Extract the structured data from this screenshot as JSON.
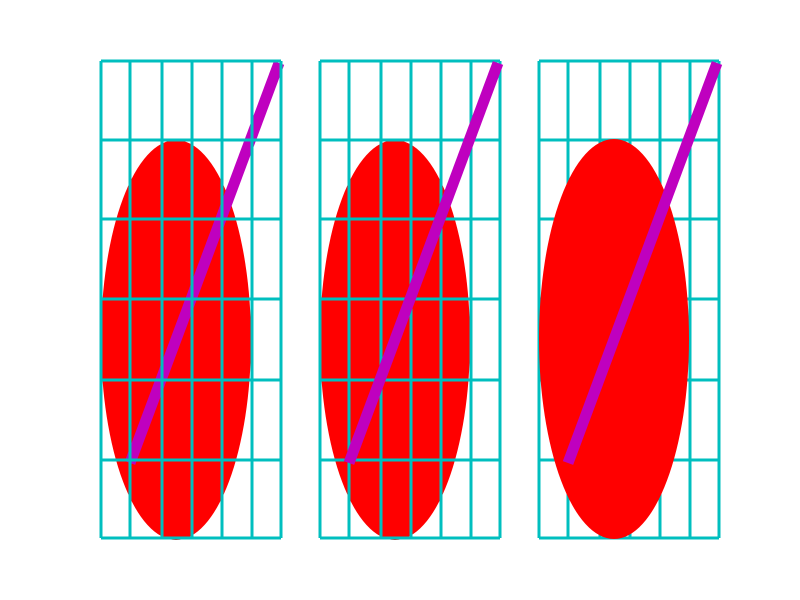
{
  "colors": {
    "background": "#ffffff",
    "grid": "#00bfbf",
    "ellipse": "#ff0000",
    "line": "#bf00bf"
  },
  "panels": [
    {
      "id": "panel-1",
      "zorder": {
        "ellipse": 1,
        "line": 2,
        "grid": 3
      }
    },
    {
      "id": "panel-2",
      "zorder": {
        "ellipse": 1,
        "grid": 2,
        "line": 3
      }
    },
    {
      "id": "panel-3",
      "zorder": {
        "grid": 1,
        "ellipse": 2,
        "line": 3
      }
    }
  ]
}
